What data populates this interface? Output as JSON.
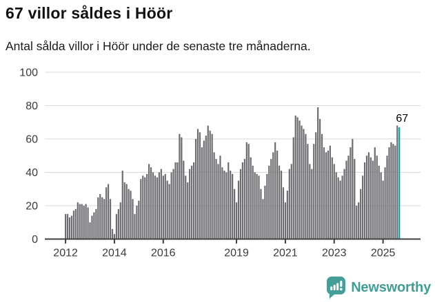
{
  "header": {
    "title": "67 villor såldes i Höör",
    "subtitle": "Antal sålda villor i Höör under de senaste tre månaderna."
  },
  "chart_data": {
    "type": "bar",
    "title": "67 villor såldes i Höör",
    "subtitle": "Antal sålda villor i Höör under de senaste tre månaderna.",
    "unit": "sålda villor (rullande 3 månader)",
    "x_start": "2012-01",
    "x_frequency": "monthly",
    "ylim": [
      0,
      100
    ],
    "yticks": [
      0,
      20,
      40,
      60,
      80,
      100
    ],
    "xticks": [
      {
        "label": "2012",
        "month_index": 0
      },
      {
        "label": "2014",
        "month_index": 24
      },
      {
        "label": "2016",
        "month_index": 48
      },
      {
        "label": "2019",
        "month_index": 84
      },
      {
        "label": "2021",
        "month_index": 108
      },
      {
        "label": "2023",
        "month_index": 132
      },
      {
        "label": "2025",
        "month_index": 156
      }
    ],
    "grid": true,
    "legend": false,
    "bar_color": "#6d6d71",
    "accent_color": "#11a0a5",
    "values": [
      15,
      15,
      13,
      14,
      17,
      18,
      22,
      21,
      21,
      20,
      21,
      19,
      10,
      14,
      16,
      18,
      25,
      27,
      25,
      24,
      31,
      33,
      24,
      6,
      3,
      15,
      18,
      22,
      41,
      34,
      33,
      30,
      29,
      24,
      15,
      20,
      23,
      36,
      38,
      37,
      39,
      45,
      43,
      40,
      38,
      37,
      40,
      42,
      38,
      39,
      35,
      33,
      40,
      42,
      46,
      46,
      63,
      61,
      47,
      38,
      34,
      42,
      44,
      46,
      60,
      66,
      64,
      55,
      59,
      62,
      68,
      65,
      63,
      52,
      48,
      45,
      50,
      43,
      41,
      40,
      46,
      41,
      39,
      30,
      22,
      35,
      42,
      46,
      48,
      58,
      57,
      49,
      44,
      40,
      39,
      38,
      30,
      24,
      32,
      39,
      44,
      48,
      52,
      58,
      53,
      44,
      41,
      31,
      22,
      29,
      42,
      45,
      61,
      74,
      73,
      71,
      68,
      66,
      63,
      57,
      45,
      42,
      57,
      64,
      79,
      72,
      63,
      55,
      52,
      53,
      56,
      49,
      45,
      40,
      37,
      35,
      38,
      42,
      47,
      50,
      55,
      60,
      48,
      20,
      22,
      30,
      38,
      46,
      50,
      52,
      49,
      47,
      55,
      50,
      44,
      40,
      35,
      43,
      50,
      55,
      58,
      57,
      56,
      68,
      67
    ],
    "highlight": {
      "index": 164,
      "value": 67,
      "label": "67"
    }
  },
  "footer": {
    "brand": "Newsworthy",
    "brand_color": "#3f9e98",
    "logo_icon": "bar-chart-speech-bubble-icon"
  }
}
